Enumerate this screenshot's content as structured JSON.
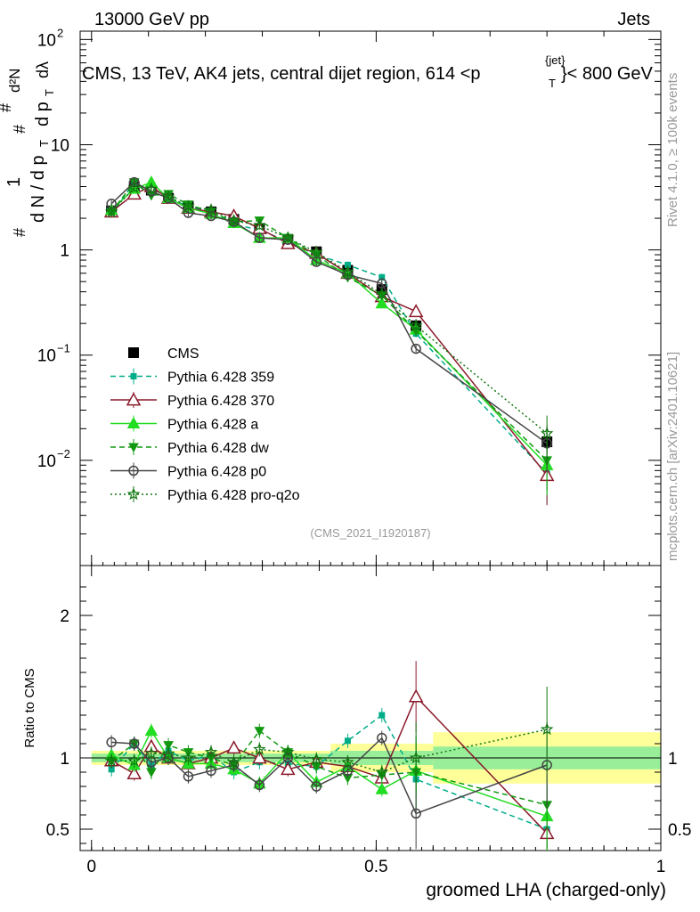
{
  "header": {
    "left": "13000 GeV pp",
    "right": "Jets"
  },
  "plot_title": "CMS, 13 TeV, AK4 jets, central dijet region, 614 < p_T^{jet} < 800 GeV",
  "title_parts": {
    "a": "CMS, 13 TeV, AK4 jets, central dijet region, 614 <p",
    "sub": "T",
    "sup": "{jet}",
    "b": "}< 800 GeV"
  },
  "ylabel_main": "1/(dN/dp_T) d²N/(dp_T dλ)",
  "ylabel_parts": {
    "one": "1",
    "hash1": "#",
    "dn": "d N / d p",
    "t1": "T",
    "hash2": "#",
    "dpT": "d p",
    "t2": "T",
    "d2N": "d²N",
    "dl": "dλ",
    "hash3": "#"
  },
  "ylabel_ratio": "Ratio to CMS",
  "xlabel": "groomed LHA (charged-only)",
  "watermark": "(CMS_2021_I1920187)",
  "side_rivet": "Rivet 4.1.0, ≥ 100k events",
  "side_mcplots": "mcplots.cern.ch [arXiv:2401.10621]",
  "colors": {
    "cms": "#000000",
    "p359": "#00ad89",
    "p370": "#8b1a2b",
    "pa": "#22dd22",
    "pdw": "#119911",
    "pp0": "#444444",
    "pq2o": "#117711",
    "band_outer": "#ffff99",
    "band_inner": "#99ee99"
  },
  "chart_data": [
    {
      "type": "line",
      "name": "main",
      "yscale": "log",
      "xlim": [
        -0.02,
        1.0
      ],
      "ylim": [
        0.001,
        120
      ],
      "x_ticks": [
        "0",
        "0.5",
        "1"
      ],
      "y_ticks": [
        "10^-2",
        "10^-1",
        "1",
        "10",
        "10^2"
      ],
      "x": [
        0.035,
        0.075,
        0.105,
        0.135,
        0.17,
        0.21,
        0.25,
        0.295,
        0.345,
        0.395,
        0.45,
        0.51,
        0.57,
        0.8
      ],
      "series": [
        {
          "name": "CMS",
          "key": "cms",
          "values": [
            2.35,
            4.0,
            3.7,
            3.1,
            2.6,
            2.3,
            1.95,
            1.6,
            1.25,
            0.96,
            0.64,
            0.42,
            0.19,
            0.015
          ],
          "errors": [
            0.15,
            0.2,
            0.2,
            0.15,
            0.12,
            0.1,
            0.09,
            0.08,
            0.06,
            0.05,
            0.05,
            0.04,
            0.03,
            0.003
          ]
        },
        {
          "name": "Pythia 6.428 359",
          "key": "p359",
          "values": [
            2.2,
            4.4,
            3.5,
            3.2,
            2.55,
            2.35,
            1.75,
            1.55,
            1.2,
            0.9,
            0.72,
            0.55,
            0.16,
            0.0075
          ]
        },
        {
          "name": "Pythia 6.428 370",
          "key": "p370",
          "values": [
            2.3,
            3.4,
            4.0,
            3.1,
            2.5,
            2.3,
            2.1,
            1.6,
            1.15,
            0.93,
            0.6,
            0.36,
            0.26,
            0.0072
          ]
        },
        {
          "name": "Pythia 6.428 a",
          "key": "pa",
          "values": [
            2.4,
            3.8,
            4.4,
            3.1,
            2.5,
            2.2,
            1.8,
            1.3,
            1.3,
            0.8,
            0.6,
            0.31,
            0.175,
            0.009
          ]
        },
        {
          "name": "Pythia 6.428 dw",
          "key": "pdw",
          "values": [
            2.3,
            4.4,
            3.3,
            3.4,
            2.7,
            2.3,
            1.85,
            1.9,
            1.3,
            0.9,
            0.55,
            0.37,
            0.17,
            0.01
          ]
        },
        {
          "name": "Pythia 6.428 p0",
          "key": "pp0",
          "values": [
            2.75,
            4.4,
            3.6,
            3.1,
            2.25,
            2.1,
            1.85,
            1.3,
            1.25,
            0.77,
            0.58,
            0.48,
            0.115,
            0.0145
          ]
        },
        {
          "name": "Pythia 6.428 pro-q2o",
          "key": "pq2o",
          "values": [
            2.3,
            3.9,
            3.8,
            3.2,
            2.6,
            2.4,
            1.9,
            1.7,
            1.3,
            0.95,
            0.62,
            0.38,
            0.19,
            0.018
          ]
        }
      ]
    },
    {
      "type": "line",
      "name": "ratio",
      "xlim": [
        -0.02,
        1.0
      ],
      "ylim": [
        0.35,
        2.35
      ],
      "y_ticks": [
        "0.5",
        "1",
        "2"
      ],
      "x": [
        0.035,
        0.075,
        0.105,
        0.135,
        0.17,
        0.21,
        0.25,
        0.295,
        0.345,
        0.395,
        0.45,
        0.51,
        0.57,
        0.8
      ],
      "bands": [
        {
          "x0": 0.0,
          "x1": 0.42,
          "inner": 0.03,
          "outer": 0.05
        },
        {
          "x0": 0.42,
          "x1": 0.6,
          "inner": 0.05,
          "outer": 0.1
        },
        {
          "x0": 0.6,
          "x1": 1.0,
          "inner": 0.08,
          "outer": 0.18
        }
      ],
      "series": [
        {
          "name": "Pythia 6.428 359",
          "key": "p359",
          "values": [
            0.92,
            1.1,
            0.95,
            1.05,
            0.98,
            1.02,
            0.9,
            0.97,
            0.96,
            0.94,
            1.12,
            1.3,
            0.85,
            0.5
          ]
        },
        {
          "name": "Pythia 6.428 370",
          "key": "p370",
          "values": [
            0.98,
            0.89,
            1.08,
            1.0,
            0.96,
            1.0,
            1.07,
            1.0,
            0.92,
            0.97,
            0.94,
            0.86,
            1.43,
            0.47
          ]
        },
        {
          "name": "Pythia 6.428 a",
          "key": "pa",
          "values": [
            1.02,
            0.95,
            1.19,
            1.0,
            0.96,
            0.96,
            0.92,
            0.82,
            1.04,
            0.83,
            0.94,
            0.78,
            0.91,
            0.59
          ]
        },
        {
          "name": "Pythia 6.428 dw",
          "key": "pdw",
          "values": [
            0.98,
            1.1,
            0.9,
            1.09,
            1.04,
            1.0,
            0.95,
            1.19,
            1.04,
            0.94,
            0.86,
            0.88,
            0.9,
            0.67
          ]
        },
        {
          "name": "Pythia 6.428 p0",
          "key": "pp0",
          "values": [
            1.11,
            1.1,
            0.97,
            1.0,
            0.87,
            0.91,
            0.95,
            0.81,
            1.0,
            0.8,
            0.91,
            1.14,
            0.61,
            0.95
          ]
        },
        {
          "name": "Pythia 6.428 pro-q2o",
          "key": "pq2o",
          "values": [
            0.98,
            0.98,
            1.03,
            1.03,
            1.0,
            1.04,
            0.97,
            1.06,
            1.04,
            0.99,
            0.97,
            0.9,
            1.0,
            1.2
          ]
        }
      ]
    }
  ],
  "legend": [
    {
      "key": "cms",
      "label": "CMS"
    },
    {
      "key": "p359",
      "label": "Pythia 6.428 359"
    },
    {
      "key": "p370",
      "label": "Pythia 6.428 370"
    },
    {
      "key": "pa",
      "label": "Pythia 6.428 a"
    },
    {
      "key": "pdw",
      "label": "Pythia 6.428 dw"
    },
    {
      "key": "pp0",
      "label": "Pythia 6.428 p0"
    },
    {
      "key": "pq2o",
      "label": "Pythia 6.428 pro-q2o"
    }
  ]
}
